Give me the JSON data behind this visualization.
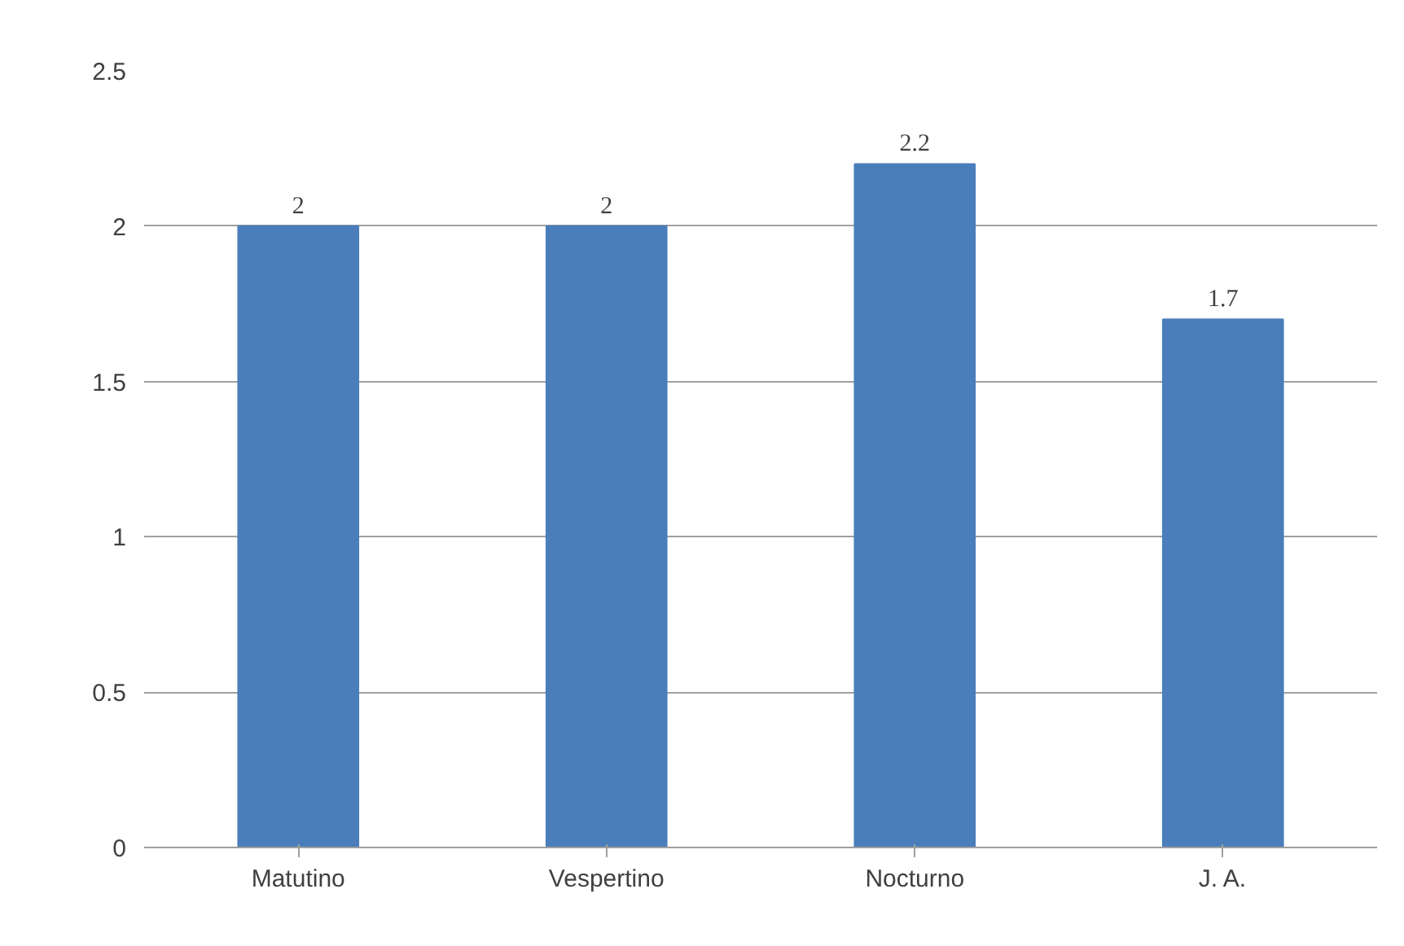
{
  "chart_data": {
    "type": "bar",
    "categories": [
      "Matutino",
      "Vespertino",
      "Nocturno",
      "J. A."
    ],
    "values": [
      2,
      2,
      2.2,
      1.7
    ],
    "color": "#4a7ebb",
    "ylim": [
      0,
      2.5
    ],
    "yticks": [
      0,
      0.5,
      1,
      1.5,
      2,
      2.5
    ],
    "grid": "y",
    "data_labels": true
  }
}
